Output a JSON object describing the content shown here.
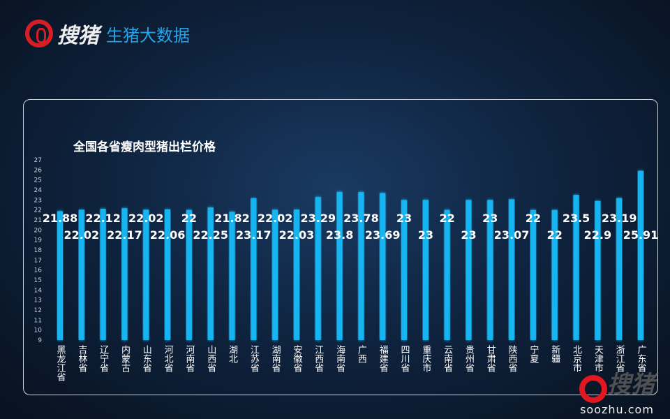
{
  "header": {
    "logo_text": "搜猪",
    "subtitle": "生猪大数据"
  },
  "watermark": {
    "logo_text": "搜猪",
    "url": "soozhu.com"
  },
  "colors": {
    "bar": "#19b4f0",
    "label": "#ffffff",
    "accent": "#d81e25"
  },
  "chart_data": {
    "type": "bar",
    "title": "全国各省瘦肉型猪出栏价格",
    "xlabel": "",
    "ylabel": "",
    "ylim": [
      9,
      27
    ],
    "yticks": [
      9,
      10,
      11,
      12,
      13,
      14,
      15,
      16,
      17,
      18,
      19,
      20,
      21,
      22,
      23,
      24,
      25,
      26,
      27
    ],
    "grid": false,
    "categories": [
      "黑龙江省",
      "吉林省",
      "辽宁省",
      "内蒙古",
      "山东省",
      "河北省",
      "河南省",
      "山西省",
      "湖北",
      "江苏省",
      "湖南省",
      "安徽省",
      "江西省",
      "海南省",
      "广西",
      "福建省",
      "四川省",
      "重庆市",
      "云南省",
      "贵州省",
      "甘肃省",
      "陕西省",
      "宁夏",
      "新疆",
      "北京市",
      "天津市",
      "浙江省",
      "广东省"
    ],
    "values": [
      21.88,
      22.02,
      22.12,
      22.17,
      22.02,
      22.06,
      22,
      22.25,
      21.82,
      23.17,
      22.02,
      22.03,
      23.29,
      23.8,
      23.78,
      23.69,
      23,
      23,
      22,
      23,
      23,
      23.07,
      22,
      22,
      23.5,
      22.9,
      23.19,
      25.91
    ]
  }
}
